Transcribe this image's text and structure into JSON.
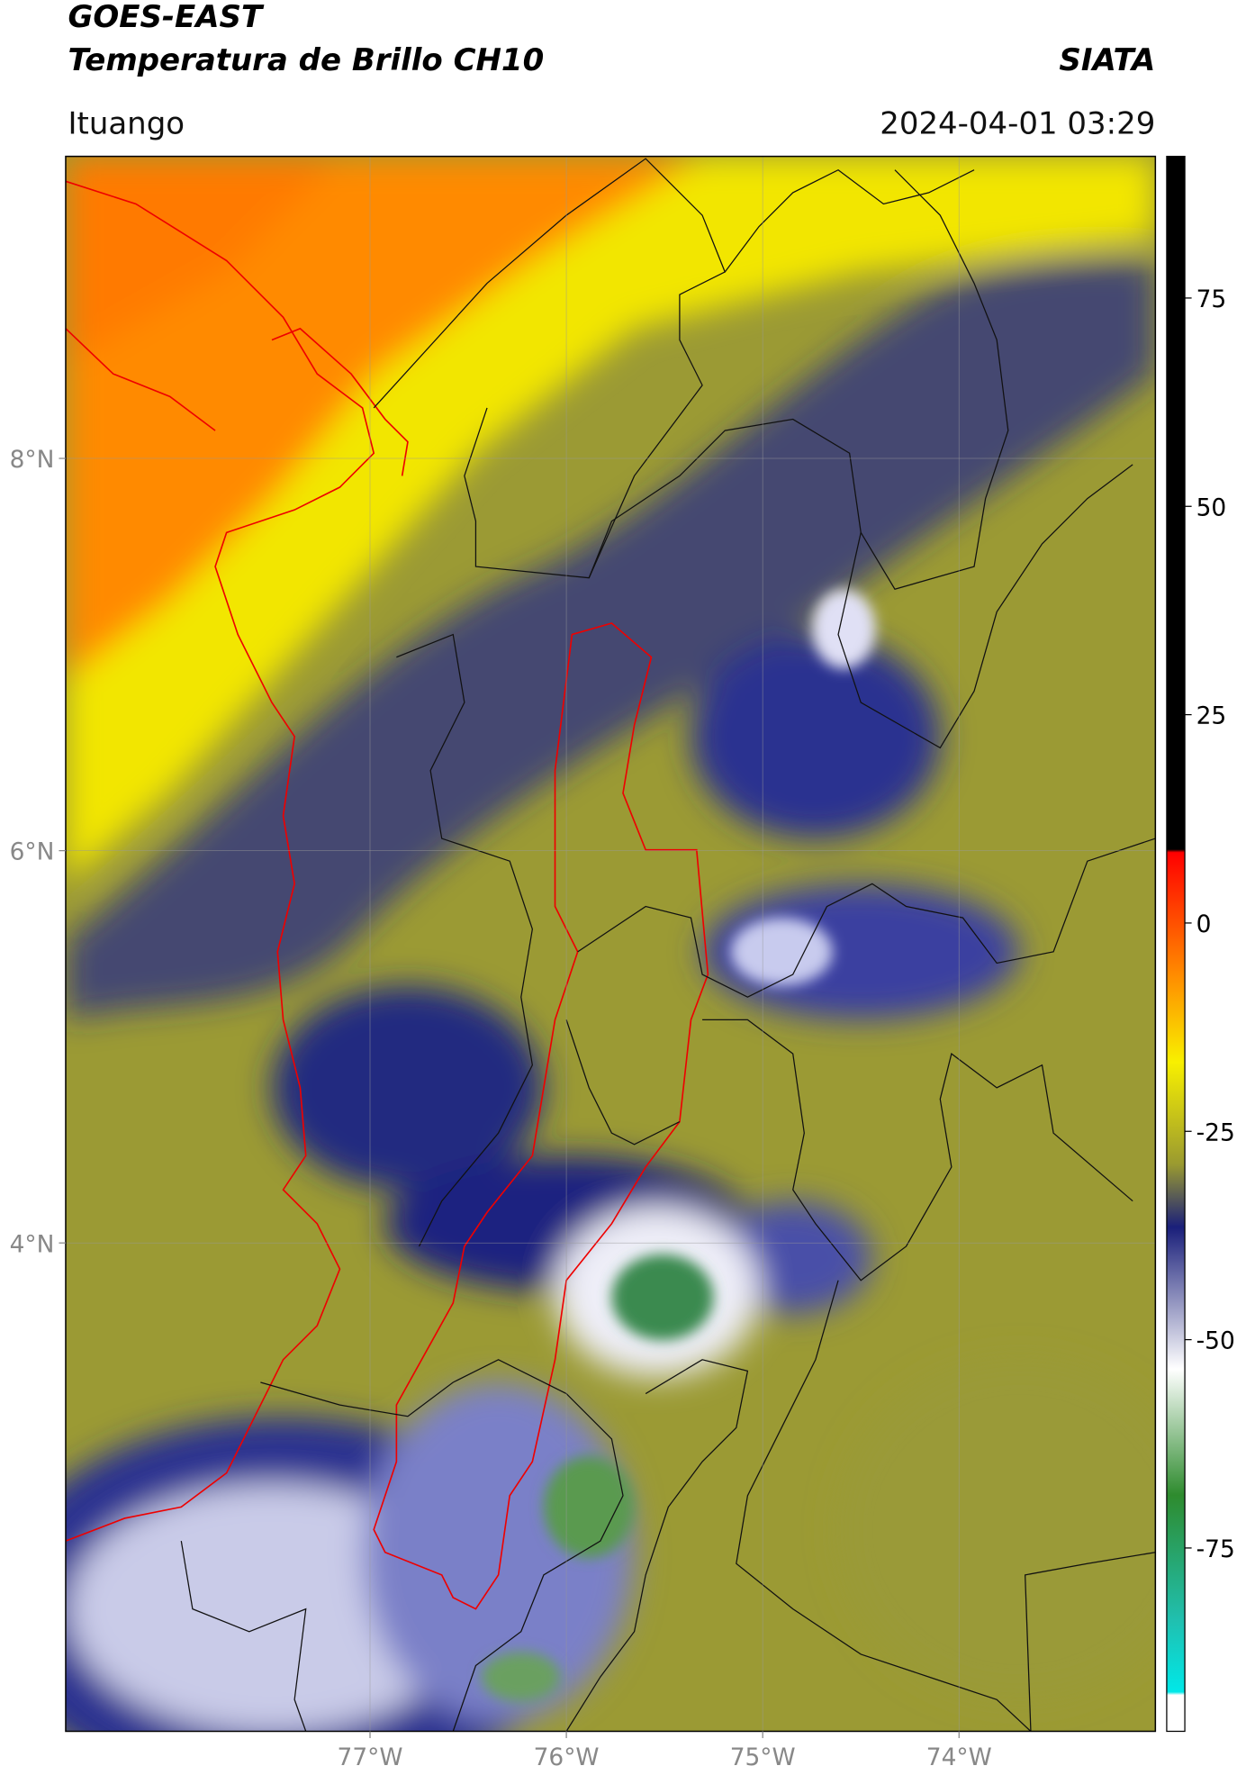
{
  "chart_data": {
    "type": "map",
    "title": "GOES-EAST",
    "subtitle": "Temperatura de Brillo CH10",
    "source": "SIATA",
    "location": "Ituango",
    "datetime": "2024-04-01 03:29",
    "xlim": [
      -78.55,
      -73.0
    ],
    "ylim": [
      1.51,
      9.54
    ],
    "xticks": [
      {
        "value": -77,
        "label": "77°W"
      },
      {
        "value": -76,
        "label": "76°W"
      },
      {
        "value": -75,
        "label": "75°W"
      },
      {
        "value": -74,
        "label": "74°W"
      }
    ],
    "yticks": [
      {
        "value": 4,
        "label": "4°N"
      },
      {
        "value": 6,
        "label": "6°N"
      },
      {
        "value": 8,
        "label": "8°N"
      }
    ],
    "grid": true,
    "colorbar": {
      "lim": [
        -97,
        92
      ],
      "ticks": [
        -75,
        -50,
        -25,
        0,
        25,
        50,
        75
      ]
    }
  }
}
